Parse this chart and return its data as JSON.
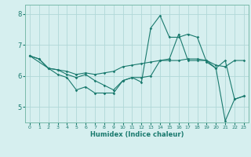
{
  "xlabel": "Humidex (Indice chaleur)",
  "background_color": "#d6efef",
  "grid_color": "#b0d8d8",
  "line_color": "#1a7a6e",
  "xlim": [
    -0.5,
    23.5
  ],
  "ylim": [
    4.5,
    8.3
  ],
  "xticks": [
    0,
    1,
    2,
    3,
    4,
    5,
    6,
    7,
    8,
    9,
    10,
    11,
    12,
    13,
    14,
    15,
    16,
    17,
    18,
    19,
    20,
    21,
    22,
    23
  ],
  "yticks": [
    5,
    6,
    7,
    8
  ],
  "line1_x": [
    0,
    1,
    2,
    3,
    4,
    5,
    6,
    7,
    8,
    9,
    10,
    11,
    12,
    13,
    14,
    15,
    16,
    17,
    18,
    19,
    20,
    21,
    22,
    23
  ],
  "line1_y": [
    6.65,
    6.55,
    6.25,
    6.05,
    5.95,
    5.55,
    5.65,
    5.45,
    5.45,
    5.45,
    5.85,
    5.95,
    5.8,
    7.55,
    7.95,
    7.25,
    7.25,
    7.35,
    7.25,
    6.45,
    6.25,
    4.55,
    5.25,
    5.35
  ],
  "line2_x": [
    0,
    1,
    2,
    3,
    4,
    5,
    6,
    7,
    8,
    9,
    10,
    11,
    12,
    13,
    14,
    15,
    16,
    17,
    18,
    19,
    20,
    21,
    22,
    23
  ],
  "line2_y": [
    6.65,
    6.55,
    6.25,
    6.2,
    6.15,
    6.05,
    6.1,
    6.05,
    6.1,
    6.15,
    6.3,
    6.35,
    6.4,
    6.45,
    6.5,
    6.5,
    6.5,
    6.55,
    6.55,
    6.5,
    6.35,
    6.3,
    6.5,
    6.5
  ],
  "line3_x": [
    0,
    2,
    3,
    4,
    5,
    6,
    7,
    8,
    9,
    10,
    11,
    12,
    13,
    14,
    15,
    16,
    17,
    18,
    19,
    20,
    21,
    22,
    23
  ],
  "line3_y": [
    6.65,
    6.25,
    6.2,
    6.05,
    5.95,
    6.05,
    5.85,
    5.7,
    5.55,
    5.85,
    5.95,
    5.95,
    6.0,
    6.5,
    6.55,
    7.35,
    6.5,
    6.5,
    6.5,
    6.25,
    6.5,
    5.25,
    5.35
  ]
}
